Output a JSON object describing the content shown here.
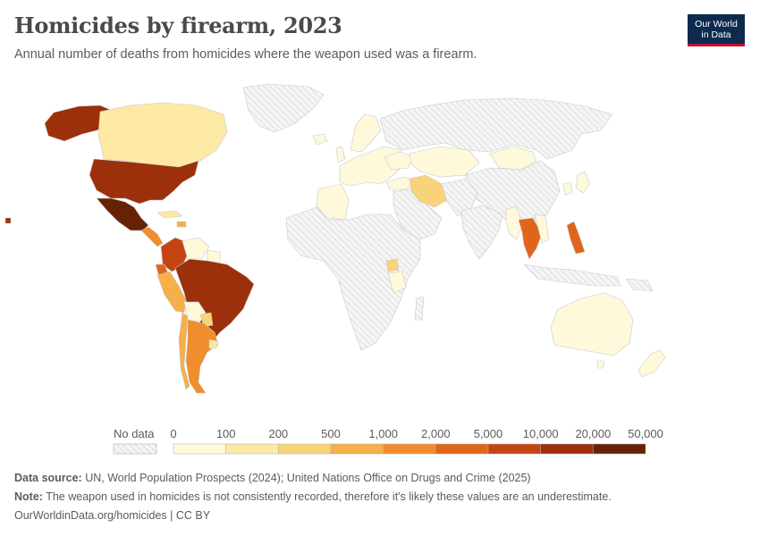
{
  "header": {
    "title": "Homicides by firearm, 2023",
    "subtitle": "Annual number of deaths from homicides where the weapon used was a firearm."
  },
  "logo": {
    "line1": "Our World",
    "line2": "in Data"
  },
  "legend": {
    "no_data_label": "No data",
    "thresholds": [
      "0",
      "100",
      "200",
      "500",
      "1,000",
      "2,000",
      "5,000",
      "10,000",
      "20,000",
      "50,000"
    ],
    "colors": [
      "#fff9dc",
      "#fde9a4",
      "#f9d37a",
      "#f5b04a",
      "#f08d2c",
      "#e0651b",
      "#c44511",
      "#9c300a",
      "#672206"
    ]
  },
  "map_colors": {
    "no_data": "#eeeeee",
    "border": "#c9c9c9"
  },
  "footer": {
    "source_label": "Data source:",
    "source_text": " UN, World Population Prospects (2024); United Nations Office on Drugs and Crime (2025)",
    "note_label": "Note:",
    "note_text": " The weapon used in homicides is not consistently recorded, therefore it's likely these values are an underestimate.",
    "credit": "OurWorldinData.org/homicides | CC BY"
  }
}
